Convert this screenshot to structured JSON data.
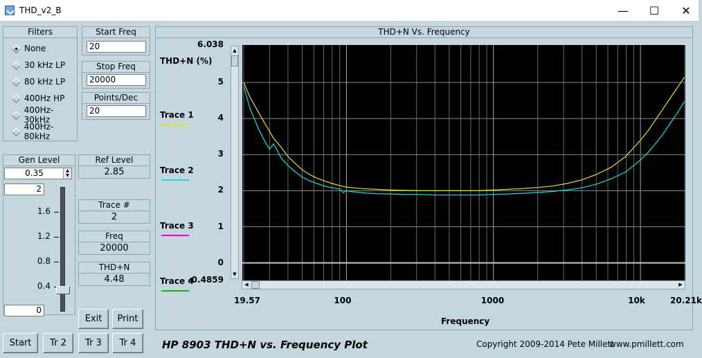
{
  "window": {
    "title": "THD_v2_B",
    "minimize_glyph": "—",
    "maximize_glyph": "☐",
    "close_glyph": "✕"
  },
  "filters": {
    "title": "Filters",
    "options": [
      "None",
      "30 kHz LP",
      "80 kHz LP",
      "400Hz HP",
      "400Hz-30kHz",
      "400Hz-80kHz"
    ],
    "selected": "None"
  },
  "start_freq": {
    "label": "Start Freq",
    "value": "20"
  },
  "stop_freq": {
    "label": "Stop Freq",
    "value": "20000"
  },
  "points_dec": {
    "label": "Points/Dec",
    "value": "20"
  },
  "gen_level": {
    "label": "Gen Level",
    "value": "0.35",
    "slider_max": "2",
    "slider_min": "0",
    "ticks": [
      "1.6",
      "1.2",
      "0.8",
      "0.4"
    ],
    "slider_value": 0.35
  },
  "ref_level": {
    "label": "Ref Level",
    "value": "2.85"
  },
  "trace_num": {
    "label": "Trace #",
    "value": "2"
  },
  "freq": {
    "label": "Freq",
    "value": "20000"
  },
  "thdn": {
    "label": "THD+N",
    "value": "4.48"
  },
  "buttons": {
    "exit": "Exit",
    "print": "Print",
    "start": "Start",
    "tr2": "Tr 2",
    "tr3": "Tr 3",
    "tr4": "Tr 4"
  },
  "footer": {
    "title": "HP 8903 THD+N vs. Frequency Plot",
    "copyright": "Copyright 2009-2014 Pete Millett",
    "website": "www.pmillett.com"
  },
  "legend": [
    {
      "name": "Trace 1",
      "color": "#e8e800"
    },
    {
      "name": "Trace 2",
      "color": "#00e8e8"
    },
    {
      "name": "Trace 3",
      "color": "#e800e8"
    },
    {
      "name": "Trace 4",
      "color": "#00c000"
    }
  ],
  "chart_data": {
    "type": "line",
    "title": "THD+N Vs. Frequency",
    "xlabel": "Frequency",
    "ylabel": "THD+N (%)",
    "x_scale": "log",
    "xlim": [
      19.57,
      20210
    ],
    "ylim": [
      -0.4859,
      6.038
    ],
    "x_tick_labels": [
      "19.57",
      "100",
      "1000",
      "10k",
      "20.21k"
    ],
    "x_tick_values": [
      19.57,
      100,
      1000,
      10000,
      20210
    ],
    "y_tick_labels": [
      "6.038",
      "5",
      "4",
      "3",
      "2",
      "1",
      "0",
      "-0.4859"
    ],
    "y_tick_values": [
      6.038,
      5,
      4,
      3,
      2,
      1,
      0,
      -0.4859
    ],
    "grid": true,
    "series": [
      {
        "name": "Trace 1",
        "color": "#e8e800",
        "x": [
          20,
          22,
          25,
          28,
          32,
          36,
          40,
          45,
          50,
          56,
          63,
          71,
          80,
          90,
          100,
          112,
          126,
          141,
          158,
          200,
          250,
          316,
          400,
          500,
          631,
          794,
          1000,
          1259,
          1585,
          1995,
          2512,
          3162,
          3981,
          5012,
          6310,
          7943,
          10000,
          11220,
          12590,
          14130,
          15850,
          17780,
          19950
        ],
        "y": [
          5.0,
          4.6,
          4.2,
          3.85,
          3.45,
          3.2,
          2.95,
          2.75,
          2.58,
          2.45,
          2.35,
          2.27,
          2.2,
          2.14,
          2.1,
          2.08,
          2.06,
          2.05,
          2.04,
          2.02,
          2.01,
          2.0,
          2.0,
          2.0,
          2.0,
          2.0,
          2.02,
          2.04,
          2.06,
          2.09,
          2.13,
          2.2,
          2.3,
          2.45,
          2.65,
          2.95,
          3.4,
          3.65,
          3.95,
          4.25,
          4.55,
          4.85,
          5.15
        ]
      },
      {
        "name": "Trace 2",
        "color": "#00e8e8",
        "x": [
          20,
          22,
          25,
          28,
          30,
          32,
          34,
          36,
          40,
          45,
          50,
          56,
          63,
          71,
          80,
          90,
          95,
          100,
          112,
          126,
          141,
          158,
          200,
          250,
          316,
          400,
          500,
          631,
          794,
          1000,
          1259,
          1585,
          1995,
          2512,
          3162,
          3981,
          5012,
          6310,
          7943,
          10000,
          11220,
          12590,
          14130,
          15850,
          17780,
          20000
        ],
        "y": [
          4.9,
          4.3,
          3.75,
          3.35,
          3.15,
          3.3,
          3.1,
          2.9,
          2.7,
          2.52,
          2.38,
          2.28,
          2.2,
          2.13,
          2.08,
          2.05,
          1.95,
          2.0,
          1.97,
          1.95,
          1.93,
          1.92,
          1.91,
          1.9,
          1.9,
          1.88,
          1.88,
          1.88,
          1.88,
          1.9,
          1.91,
          1.93,
          1.95,
          1.98,
          2.02,
          2.08,
          2.18,
          2.33,
          2.52,
          2.85,
          3.05,
          3.3,
          3.55,
          3.85,
          4.15,
          4.48
        ]
      },
      {
        "name": "Trace 3",
        "color": "#e800e8",
        "x": [],
        "y": []
      },
      {
        "name": "Trace 4",
        "color": "#00c000",
        "x": [],
        "y": []
      }
    ]
  }
}
